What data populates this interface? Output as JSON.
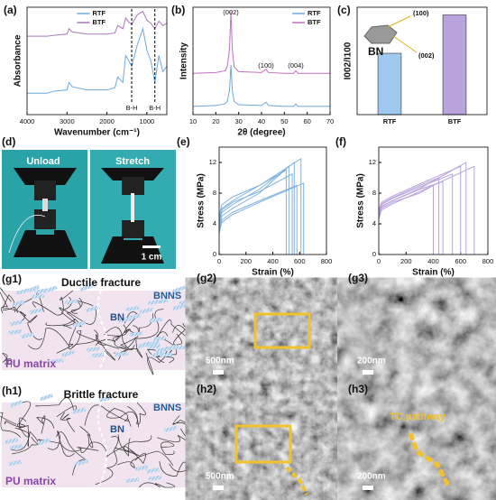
{
  "chart_data": [
    {
      "type": "line",
      "panel": "(a)",
      "xlabel": "Wavenumber (cm⁻¹)",
      "ylabel": "Absorbance",
      "xlim": [
        4000,
        500
      ],
      "xticks": [
        4000,
        3000,
        2000,
        1000
      ],
      "ylim": [
        0,
        10
      ],
      "legend": "upper center",
      "x": [
        4000,
        3500,
        3300,
        3000,
        2950,
        2870,
        2500,
        2000,
        1800,
        1730,
        1600,
        1530,
        1450,
        1380,
        1240,
        1100,
        1000,
        900,
        800,
        700,
        600,
        500
      ],
      "series": [
        {
          "name": "RTF",
          "color": "#6fa8dc",
          "values": [
            2.0,
            2.0,
            2.2,
            2.3,
            3.0,
            2.6,
            2.3,
            2.3,
            2.5,
            3.5,
            3.0,
            5.5,
            5.0,
            4.5,
            6.5,
            8.0,
            6.0,
            5.0,
            3.0,
            5.5,
            4.0,
            4.5
          ]
        },
        {
          "name": "BTF",
          "color": "#a678b8",
          "values": [
            7.3,
            7.3,
            7.4,
            7.5,
            8.0,
            7.7,
            7.5,
            7.5,
            7.6,
            8.3,
            8.0,
            9.0,
            8.6,
            8.4,
            9.3,
            9.6,
            8.8,
            8.5,
            8.0,
            8.7,
            8.3,
            8.5
          ]
        }
      ],
      "annotations": [
        {
          "x": 1380,
          "text": "B-H"
        },
        {
          "x": 800,
          "text": "B-H"
        }
      ]
    },
    {
      "type": "line",
      "panel": "(b)",
      "xlabel": "2θ (degree)",
      "ylabel": "Intensity",
      "xlim": [
        10,
        70
      ],
      "xticks": [
        10,
        20,
        30,
        40,
        50,
        60,
        70
      ],
      "ylim": [
        0,
        13
      ],
      "legend": "upper right",
      "x": [
        10,
        20,
        24,
        25,
        26,
        26.6,
        27.2,
        28,
        30,
        40,
        42,
        43,
        50,
        54,
        55,
        56,
        60,
        70
      ],
      "series": [
        {
          "name": "RTF",
          "color": "#6fa8dc",
          "values": [
            1.0,
            1.1,
            1.3,
            1.6,
            3,
            6,
            3,
            1.6,
            1.2,
            1.1,
            1.5,
            1.1,
            1.0,
            1.0,
            1.3,
            1.0,
            1.0,
            1.0
          ]
        },
        {
          "name": "BTF",
          "color": "#c070c0",
          "values": [
            5.0,
            5.1,
            5.3,
            5.8,
            8,
            12.5,
            8,
            5.8,
            5.2,
            5.1,
            5.5,
            5.1,
            5.0,
            5.0,
            5.3,
            5.0,
            5.0,
            5.0
          ]
        }
      ],
      "annotations": [
        {
          "x": 26.6,
          "text": "(002)"
        },
        {
          "x": 42,
          "text": "(100)"
        },
        {
          "x": 55,
          "text": "(004)"
        }
      ]
    },
    {
      "type": "bar",
      "panel": "(c)",
      "ylabel": "I002/I100",
      "ylim": [
        0,
        14
      ],
      "categories": [
        "RTF",
        "BTF"
      ],
      "values": [
        8,
        13
      ],
      "colors": [
        "#9fc9ee",
        "#b9a3dd"
      ],
      "inset_labels": [
        "BN",
        "(100)",
        "(002)"
      ]
    },
    {
      "type": "stress",
      "panel": "(e)",
      "xlabel": "Strain (%)",
      "ylabel": "Stress (MPa)",
      "color": "#7fb1e0",
      "xlim": [
        0,
        800
      ],
      "xticks": [
        0,
        200,
        400,
        600,
        800
      ],
      "ylim": [
        0,
        14
      ],
      "yticks": [
        0,
        4,
        8,
        12
      ],
      "series": [
        {
          "x": [
            0,
            20,
            100,
            300,
            520,
            520
          ],
          "values": [
            3.5,
            5,
            6,
            8,
            11.5,
            0
          ]
        },
        {
          "x": [
            0,
            20,
            100,
            300,
            560,
            560
          ],
          "values": [
            4,
            5.5,
            6.5,
            8.5,
            12,
            0
          ]
        },
        {
          "x": [
            0,
            20,
            100,
            300,
            610,
            610
          ],
          "values": [
            4.5,
            6,
            7,
            9,
            12.5,
            0
          ]
        },
        {
          "x": [
            0,
            20,
            100,
            300,
            580,
            580
          ],
          "values": [
            3,
            4.5,
            5.5,
            7,
            9,
            0
          ]
        },
        {
          "x": [
            0,
            20,
            100,
            300,
            630,
            630
          ],
          "values": [
            2.8,
            4.2,
            5.2,
            6.8,
            9.3,
            0
          ]
        },
        {
          "x": [
            0,
            20,
            100,
            300,
            500,
            500
          ],
          "values": [
            5,
            6.5,
            7.5,
            9,
            11,
            0
          ]
        },
        {
          "x": [
            0,
            20,
            100,
            300,
            545,
            545
          ],
          "values": [
            4.2,
            5.8,
            6.8,
            8.2,
            10.5,
            0
          ]
        }
      ]
    },
    {
      "type": "stress",
      "panel": "(f)",
      "xlabel": "Strain (%)",
      "ylabel": "Stress (MPa)",
      "color": "#b9a3dd",
      "xlim": [
        0,
        800
      ],
      "xticks": [
        0,
        200,
        400,
        600,
        800
      ],
      "ylim": [
        0,
        14
      ],
      "yticks": [
        0,
        4,
        8,
        12
      ],
      "series": [
        {
          "x": [
            0,
            20,
            100,
            300,
            400,
            400
          ],
          "values": [
            5,
            6,
            6.8,
            8,
            9,
            0
          ]
        },
        {
          "x": [
            0,
            20,
            100,
            300,
            470,
            470
          ],
          "values": [
            5.3,
            6.3,
            7,
            8.5,
            9.5,
            0
          ]
        },
        {
          "x": [
            0,
            20,
            100,
            300,
            540,
            540
          ],
          "values": [
            5.5,
            6.5,
            7.3,
            8.8,
            10.5,
            0
          ]
        },
        {
          "x": [
            0,
            20,
            100,
            300,
            600,
            600
          ],
          "values": [
            5.8,
            6.8,
            7.6,
            9.2,
            11.5,
            0
          ]
        },
        {
          "x": [
            0,
            20,
            100,
            300,
            640,
            640
          ],
          "values": [
            5,
            6.2,
            7,
            8.6,
            12,
            0
          ]
        },
        {
          "x": [
            0,
            20,
            100,
            300,
            700,
            700
          ],
          "values": [
            4.6,
            5.8,
            6.6,
            8.2,
            11.5,
            0
          ]
        },
        {
          "x": [
            0,
            20,
            100,
            300,
            440,
            440
          ],
          "values": [
            5.6,
            6.6,
            7.4,
            9,
            10,
            0
          ]
        }
      ]
    }
  ],
  "panels": {
    "d": {
      "label": "(d)",
      "left": "Unload",
      "right": "Stretch",
      "scale": "1 cm"
    },
    "g1": {
      "label": "(g1)",
      "title": "Ductile fracture",
      "filler": "BNNS",
      "bn": "BN",
      "matrix": "PU matrix"
    },
    "g2": {
      "label": "(g2)",
      "scale": "500nm"
    },
    "g3": {
      "label": "(g3)",
      "scale": "200nm"
    },
    "h1": {
      "label": "(h1)",
      "title": "Brittle fracture",
      "filler": "BNNS",
      "bn": "BN",
      "matrix": "PU matrix"
    },
    "h2": {
      "label": "(h2)",
      "scale": "500nm"
    },
    "h3": {
      "label": "(h3)",
      "scale": "200nm",
      "note": "TC pathway"
    }
  }
}
